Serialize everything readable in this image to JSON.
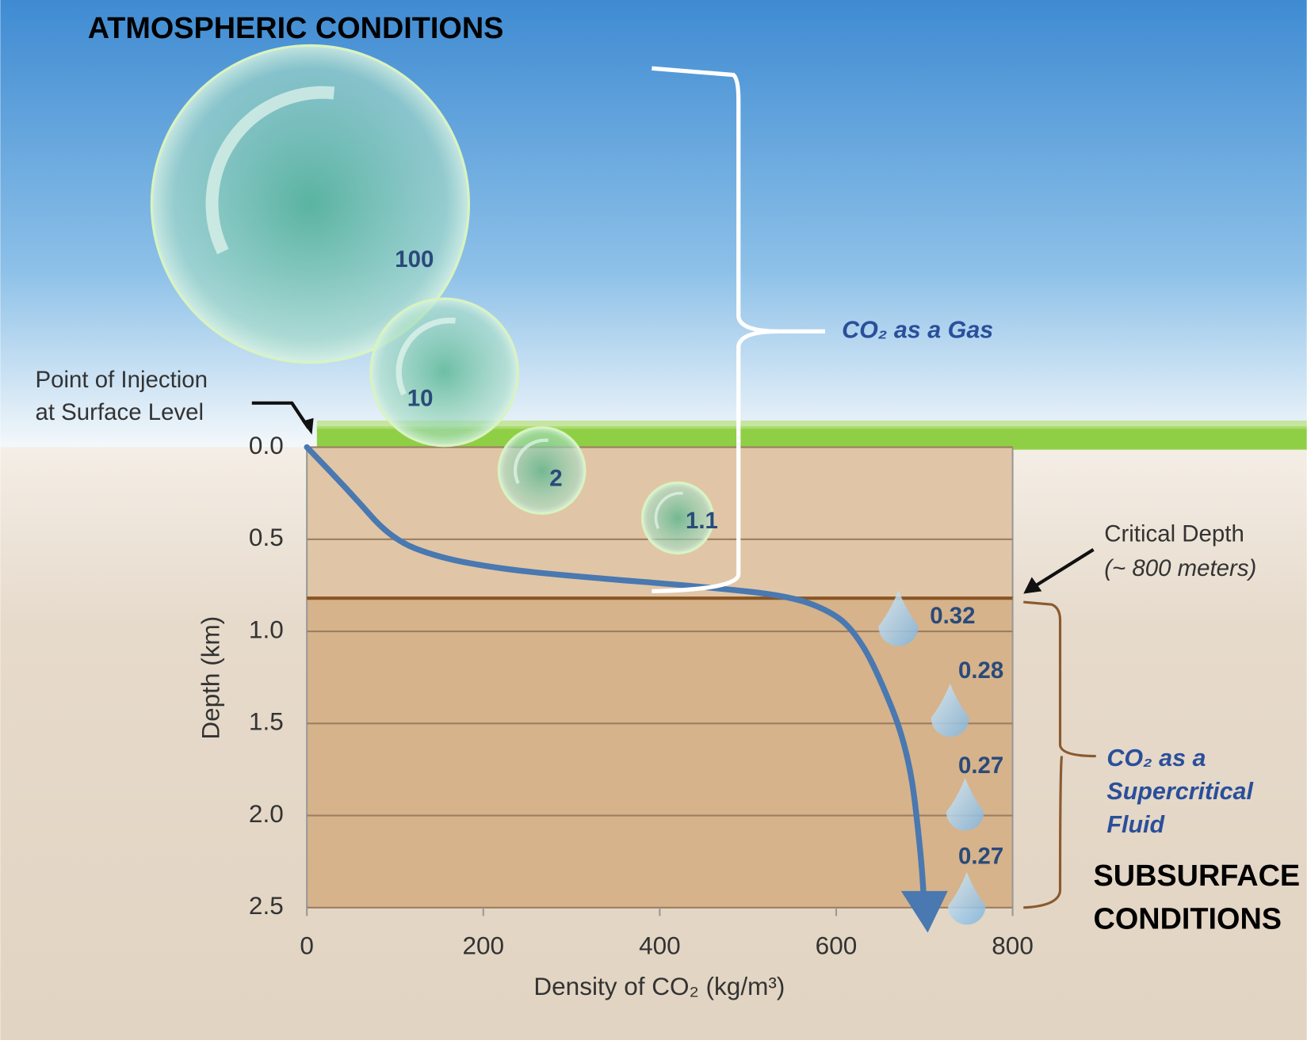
{
  "chart_data": {
    "type": "line",
    "title": "ATMOSPHERIC CONDITIONS",
    "subtitle": [
      "SUBSURFACE",
      "CONDITIONS"
    ],
    "x_label": "Density of CO₂ (kg/m³)",
    "y_label": "Depth (km)",
    "x": [
      0,
      50,
      96,
      150,
      219,
      300,
      455,
      550,
      597,
      620,
      644,
      682,
      696,
      700
    ],
    "values": [
      0,
      0.25,
      0.5,
      0.6,
      0.66,
      0.7,
      0.76,
      0.81,
      0.9,
      1.0,
      1.19,
      1.64,
      2.2,
      2.5
    ],
    "color": "#4a78b0",
    "xlim": [
      0,
      800
    ],
    "xticks": [
      0,
      200,
      400,
      600,
      800
    ],
    "ylim": [
      0,
      2.5
    ],
    "y_inverted": true,
    "yticks": [
      {
        "value": 0,
        "label": "0.0"
      },
      0.5,
      {
        "value": 1,
        "label": "1.0"
      },
      1.5,
      {
        "value": 2,
        "label": "2.0"
      },
      2.5
    ],
    "grid": true,
    "critical_depth": 0.82,
    "bubbles": [
      100,
      10,
      2,
      1.1
    ],
    "droplets": [
      0.32,
      0.28,
      0.27,
      0.27
    ],
    "annotations": {
      "injection": [
        "Point of Injection",
        "at Surface Level"
      ],
      "gas": "CO₂ as a Gas",
      "critical": [
        "Critical Depth",
        "(~ 800 meters)"
      ],
      "supercritical": [
        "CO₂ as a",
        "Supercritical",
        "Fluid"
      ]
    }
  }
}
